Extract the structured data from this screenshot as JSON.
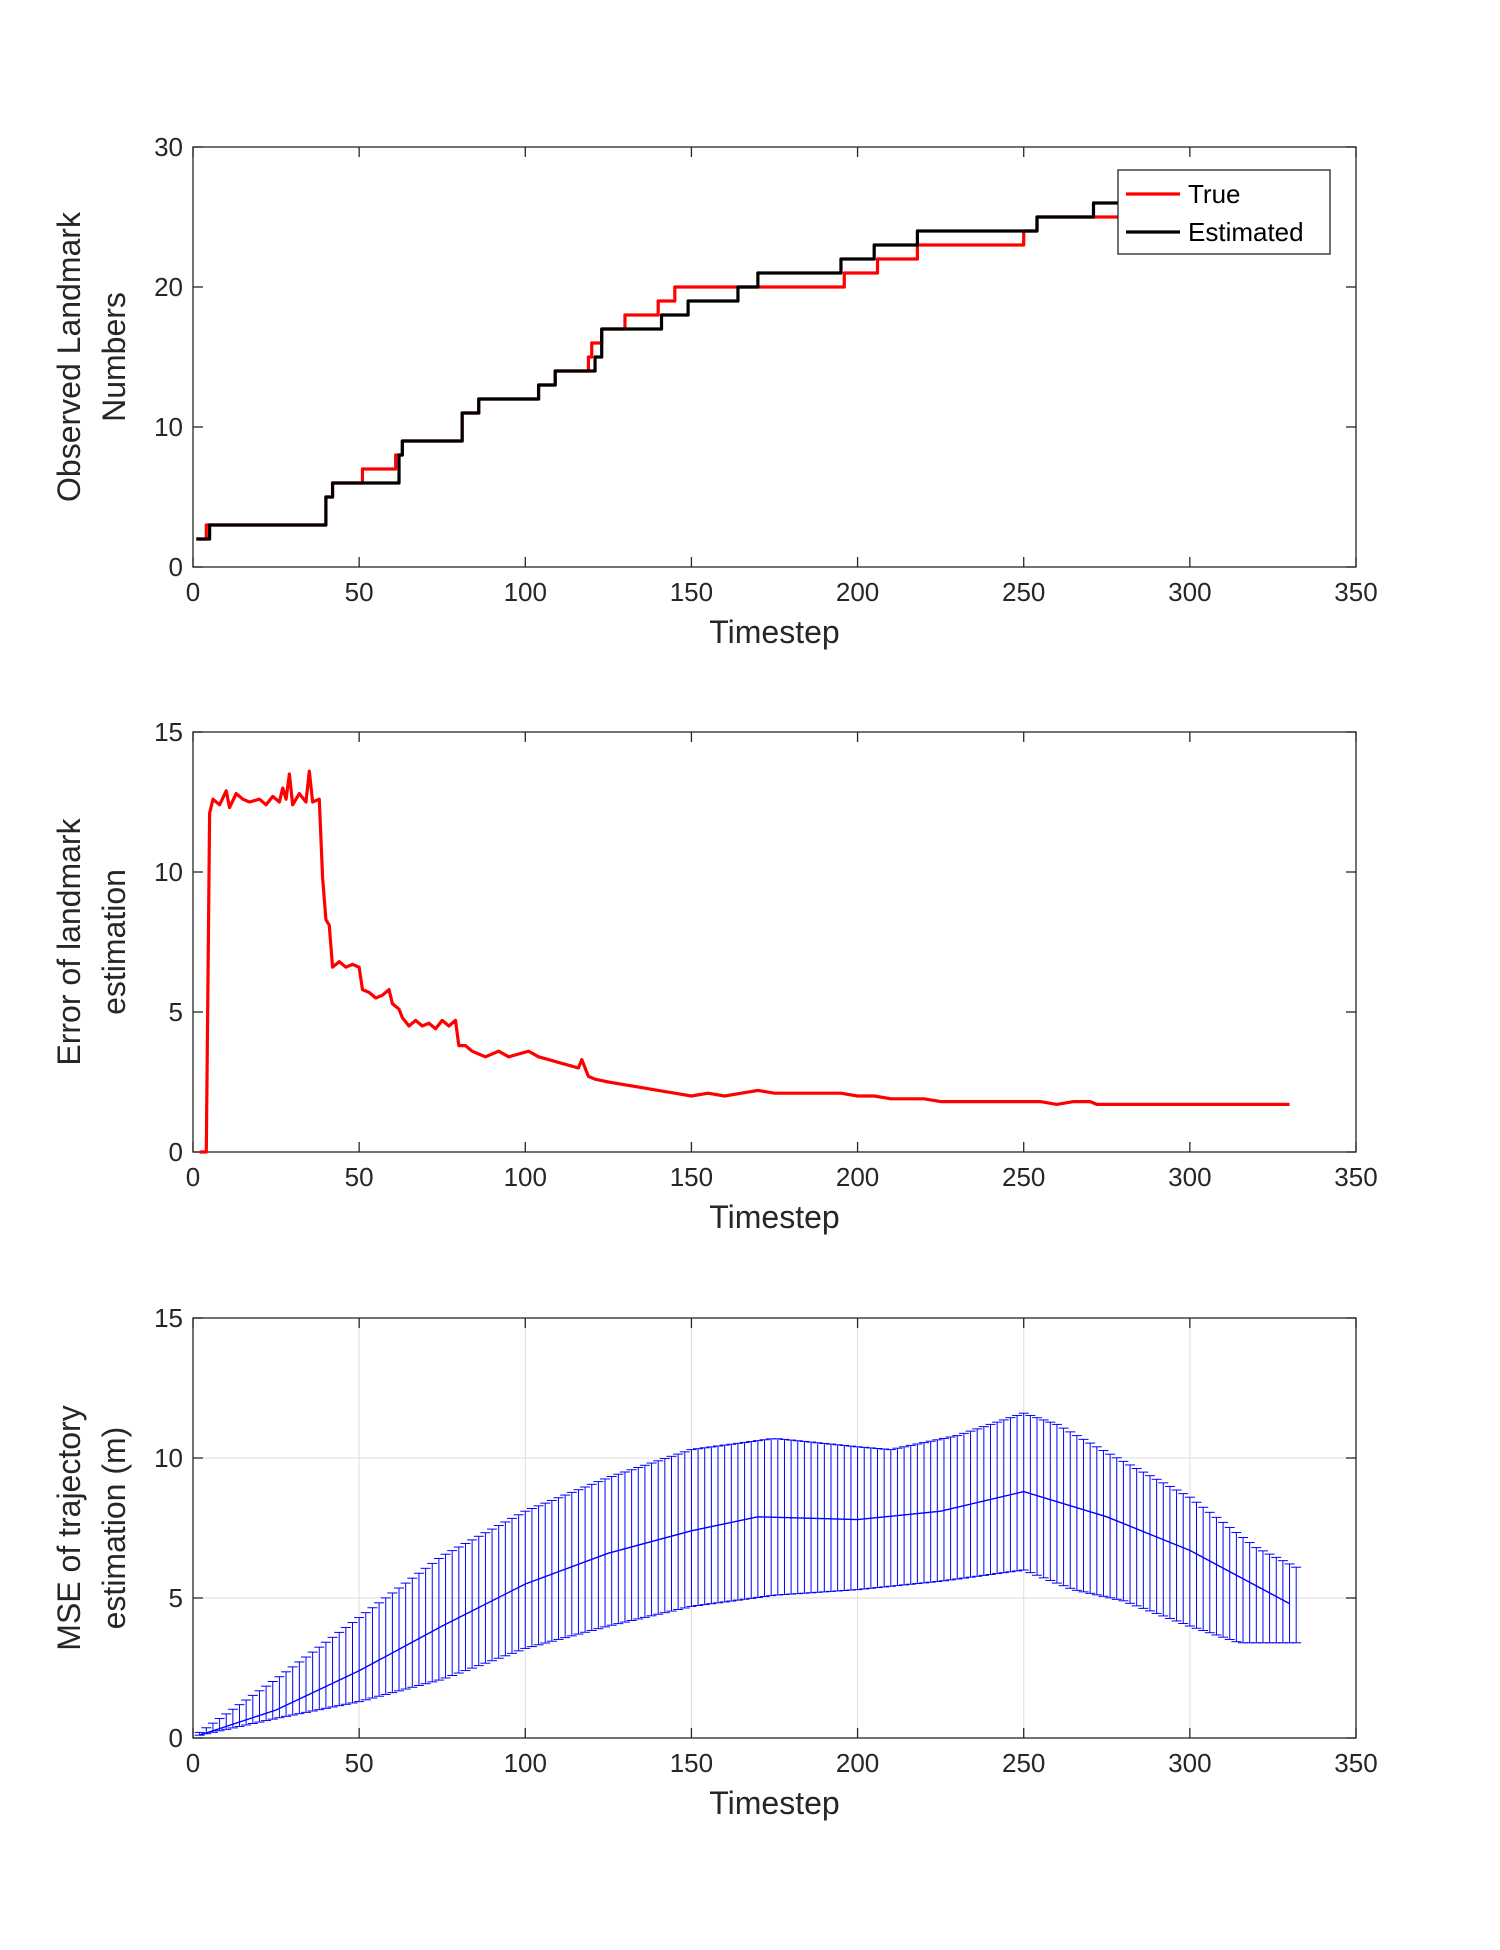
{
  "chart_data": [
    {
      "type": "line",
      "xlabel": "Timestep",
      "ylabel": [
        "Observed Landmark",
        "Numbers"
      ],
      "xlim": [
        0,
        350
      ],
      "ylim": [
        0,
        30
      ],
      "xticks": [
        0,
        50,
        100,
        150,
        200,
        250,
        300,
        350
      ],
      "yticks": [
        0,
        10,
        20,
        30
      ],
      "grid": false,
      "legend": "top-right",
      "series": [
        {
          "name": "True",
          "color": "#ff0000",
          "step": true,
          "points": [
            [
              1,
              2
            ],
            [
              4,
              3
            ],
            [
              38,
              3
            ],
            [
              40,
              5
            ],
            [
              42,
              6
            ],
            [
              51,
              6
            ],
            [
              51,
              7
            ],
            [
              60,
              7
            ],
            [
              61,
              8
            ],
            [
              63,
              9
            ],
            [
              80,
              9
            ],
            [
              81,
              11
            ],
            [
              86,
              12
            ],
            [
              103,
              12
            ],
            [
              104,
              13
            ],
            [
              109,
              14
            ],
            [
              118,
              14
            ],
            [
              119,
              15
            ],
            [
              120,
              16
            ],
            [
              123,
              17
            ],
            [
              130,
              18
            ],
            [
              139,
              18
            ],
            [
              140,
              19
            ],
            [
              145,
              20
            ],
            [
              170,
              20
            ],
            [
              195,
              20
            ],
            [
              196,
              21
            ],
            [
              205,
              21
            ],
            [
              206,
              22
            ],
            [
              217,
              22
            ],
            [
              218,
              23
            ],
            [
              249,
              23
            ],
            [
              250,
              24
            ],
            [
              254,
              25
            ],
            [
              270,
              25
            ],
            [
              275,
              25
            ],
            [
              295,
              25
            ]
          ]
        },
        {
          "name": "Estimated",
          "color": "#000000",
          "step": true,
          "points": [
            [
              1,
              2
            ],
            [
              5,
              3
            ],
            [
              38,
              3
            ],
            [
              40,
              5
            ],
            [
              42,
              6
            ],
            [
              61,
              6
            ],
            [
              62,
              8
            ],
            [
              63,
              9
            ],
            [
              80,
              9
            ],
            [
              81,
              11
            ],
            [
              86,
              12
            ],
            [
              103,
              12
            ],
            [
              104,
              13
            ],
            [
              109,
              14
            ],
            [
              120,
              14
            ],
            [
              121,
              15
            ],
            [
              123,
              17
            ],
            [
              140,
              17
            ],
            [
              141,
              18
            ],
            [
              149,
              19
            ],
            [
              163,
              19
            ],
            [
              164,
              20
            ],
            [
              170,
              21
            ],
            [
              194,
              21
            ],
            [
              195,
              22
            ],
            [
              205,
              23
            ],
            [
              217,
              23
            ],
            [
              218,
              24
            ],
            [
              252,
              24
            ],
            [
              254,
              25
            ],
            [
              270,
              25
            ],
            [
              271,
              26
            ],
            [
              279,
              26
            ]
          ]
        }
      ]
    },
    {
      "type": "line",
      "xlabel": "Timestep",
      "ylabel": [
        "Error of landmark",
        "estimation"
      ],
      "xlim": [
        0,
        350
      ],
      "ylim": [
        0,
        15
      ],
      "xticks": [
        0,
        50,
        100,
        150,
        200,
        250,
        300,
        350
      ],
      "yticks": [
        0,
        5,
        10,
        15
      ],
      "grid": false,
      "series": [
        {
          "name": "",
          "color": "#ff0000",
          "points": [
            [
              2,
              0
            ],
            [
              4,
              0
            ],
            [
              5,
              12.1
            ],
            [
              6,
              12.6
            ],
            [
              8,
              12.4
            ],
            [
              10,
              12.9
            ],
            [
              11,
              12.3
            ],
            [
              13,
              12.8
            ],
            [
              15,
              12.6
            ],
            [
              17,
              12.5
            ],
            [
              20,
              12.6
            ],
            [
              22,
              12.4
            ],
            [
              24,
              12.7
            ],
            [
              26,
              12.5
            ],
            [
              27,
              13.0
            ],
            [
              28,
              12.6
            ],
            [
              29,
              13.5
            ],
            [
              30,
              12.4
            ],
            [
              32,
              12.8
            ],
            [
              34,
              12.5
            ],
            [
              35,
              13.6
            ],
            [
              36,
              12.5
            ],
            [
              38,
              12.6
            ],
            [
              39,
              9.8
            ],
            [
              40,
              8.3
            ],
            [
              41,
              8.1
            ],
            [
              42,
              6.6
            ],
            [
              44,
              6.8
            ],
            [
              46,
              6.6
            ],
            [
              48,
              6.7
            ],
            [
              50,
              6.6
            ],
            [
              51,
              5.8
            ],
            [
              53,
              5.7
            ],
            [
              55,
              5.5
            ],
            [
              57,
              5.6
            ],
            [
              59,
              5.8
            ],
            [
              60,
              5.3
            ],
            [
              62,
              5.1
            ],
            [
              63,
              4.8
            ],
            [
              65,
              4.5
            ],
            [
              67,
              4.7
            ],
            [
              69,
              4.5
            ],
            [
              71,
              4.6
            ],
            [
              73,
              4.4
            ],
            [
              75,
              4.7
            ],
            [
              77,
              4.5
            ],
            [
              79,
              4.7
            ],
            [
              80,
              3.8
            ],
            [
              82,
              3.8
            ],
            [
              84,
              3.6
            ],
            [
              86,
              3.5
            ],
            [
              88,
              3.4
            ],
            [
              90,
              3.5
            ],
            [
              92,
              3.6
            ],
            [
              95,
              3.4
            ],
            [
              98,
              3.5
            ],
            [
              101,
              3.6
            ],
            [
              104,
              3.4
            ],
            [
              107,
              3.3
            ],
            [
              110,
              3.2
            ],
            [
              113,
              3.1
            ],
            [
              116,
              3.0
            ],
            [
              117,
              3.3
            ],
            [
              119,
              2.7
            ],
            [
              121,
              2.6
            ],
            [
              125,
              2.5
            ],
            [
              130,
              2.4
            ],
            [
              135,
              2.3
            ],
            [
              140,
              2.2
            ],
            [
              145,
              2.1
            ],
            [
              150,
              2.0
            ],
            [
              155,
              2.1
            ],
            [
              160,
              2.0
            ],
            [
              165,
              2.1
            ],
            [
              170,
              2.2
            ],
            [
              175,
              2.1
            ],
            [
              180,
              2.1
            ],
            [
              185,
              2.1
            ],
            [
              190,
              2.1
            ],
            [
              195,
              2.1
            ],
            [
              200,
              2.0
            ],
            [
              205,
              2.0
            ],
            [
              210,
              1.9
            ],
            [
              215,
              1.9
            ],
            [
              220,
              1.9
            ],
            [
              225,
              1.8
            ],
            [
              230,
              1.8
            ],
            [
              235,
              1.8
            ],
            [
              240,
              1.8
            ],
            [
              245,
              1.8
            ],
            [
              250,
              1.8
            ],
            [
              255,
              1.8
            ],
            [
              260,
              1.7
            ],
            [
              265,
              1.8
            ],
            [
              270,
              1.8
            ],
            [
              272,
              1.7
            ],
            [
              280,
              1.7
            ],
            [
              290,
              1.7
            ],
            [
              300,
              1.7
            ],
            [
              310,
              1.7
            ],
            [
              320,
              1.7
            ],
            [
              330,
              1.7
            ]
          ]
        }
      ]
    },
    {
      "type": "errorbar",
      "xlabel": "Timestep",
      "ylabel": [
        "MSE of trajectory",
        "estimation (m)"
      ],
      "xlim": [
        0,
        350
      ],
      "ylim": [
        0,
        15
      ],
      "xticks": [
        0,
        50,
        100,
        150,
        200,
        250,
        300,
        350
      ],
      "yticks": [
        0,
        5,
        10,
        15
      ],
      "grid": true,
      "series": [
        {
          "name": "",
          "color": "#0000ff",
          "mean": [
            [
              2,
              0.1
            ],
            [
              25,
              1.0
            ],
            [
              50,
              2.4
            ],
            [
              75,
              4.0
            ],
            [
              100,
              5.5
            ],
            [
              125,
              6.6
            ],
            [
              150,
              7.4
            ],
            [
              170,
              7.9
            ],
            [
              200,
              7.8
            ],
            [
              225,
              8.1
            ],
            [
              250,
              8.8
            ],
            [
              275,
              7.9
            ],
            [
              300,
              6.7
            ],
            [
              330,
              4.8
            ]
          ],
          "upper": [
            [
              2,
              0.2
            ],
            [
              25,
              2.1
            ],
            [
              50,
              4.3
            ],
            [
              75,
              6.5
            ],
            [
              100,
              8.1
            ],
            [
              125,
              9.3
            ],
            [
              150,
              10.3
            ],
            [
              175,
              10.7
            ],
            [
              200,
              10.4
            ],
            [
              210,
              10.3
            ],
            [
              230,
              10.8
            ],
            [
              250,
              11.6
            ],
            [
              260,
              11.2
            ],
            [
              275,
              10.2
            ],
            [
              300,
              8.6
            ],
            [
              320,
              6.8
            ],
            [
              332,
              6.1
            ]
          ],
          "lower": [
            [
              2,
              0.1
            ],
            [
              25,
              0.7
            ],
            [
              50,
              1.3
            ],
            [
              75,
              2.1
            ],
            [
              100,
              3.2
            ],
            [
              125,
              4.0
            ],
            [
              150,
              4.7
            ],
            [
              175,
              5.1
            ],
            [
              200,
              5.3
            ],
            [
              225,
              5.6
            ],
            [
              250,
              6.0
            ],
            [
              265,
              5.3
            ],
            [
              280,
              4.9
            ],
            [
              300,
              4.0
            ],
            [
              315,
              3.4
            ],
            [
              332,
              3.4
            ]
          ]
        }
      ]
    }
  ]
}
